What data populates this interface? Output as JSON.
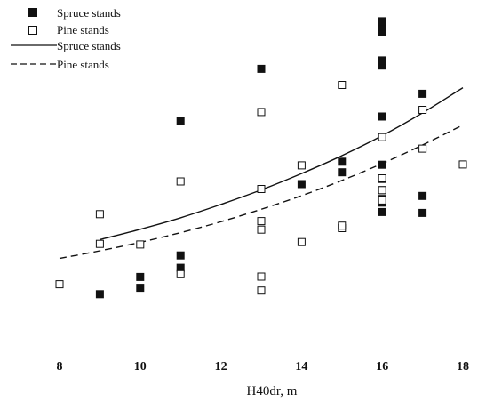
{
  "chart_data": {
    "type": "scatter",
    "title": "",
    "xlabel": "H40dr, m",
    "ylabel": "",
    "xlim": [
      8,
      18
    ],
    "ylim": [
      0,
      1
    ],
    "grid": false,
    "legend_placement": "top-left",
    "x_ticks": [
      "8",
      "10",
      "12",
      "14",
      "16",
      "18"
    ],
    "series": [
      {
        "name": "Spruce stands",
        "kind": "points",
        "marker": "filled-square",
        "color": "#111111",
        "points": [
          [
            9,
            0.112
          ],
          [
            10,
            0.133
          ],
          [
            10,
            0.169
          ],
          [
            11,
            0.199
          ],
          [
            11,
            0.24
          ],
          [
            11,
            0.682
          ],
          [
            13,
            0.855
          ],
          [
            14,
            0.475
          ],
          [
            15,
            0.514
          ],
          [
            15,
            0.549
          ],
          [
            16,
            0.383
          ],
          [
            16,
            0.414
          ],
          [
            16,
            0.426
          ],
          [
            16,
            0.455
          ],
          [
            16,
            0.492
          ],
          [
            16,
            0.539
          ],
          [
            16,
            0.698
          ],
          [
            16,
            0.866
          ],
          [
            16,
            0.883
          ],
          [
            16,
            0.976
          ],
          [
            16,
            0.993
          ],
          [
            16,
            1.012
          ],
          [
            17,
            0.38
          ],
          [
            17,
            0.436
          ],
          [
            17,
            0.773
          ]
        ]
      },
      {
        "name": "Pine stands",
        "kind": "points",
        "marker": "open-square",
        "color": "#111111",
        "points": [
          [
            8,
            0.145
          ],
          [
            9,
            0.278
          ],
          [
            9,
            0.376
          ],
          [
            10,
            0.276
          ],
          [
            11,
            0.178
          ],
          [
            11,
            0.484
          ],
          [
            13,
            0.124
          ],
          [
            13,
            0.17
          ],
          [
            13,
            0.325
          ],
          [
            13,
            0.353
          ],
          [
            13,
            0.459
          ],
          [
            13,
            0.713
          ],
          [
            14,
            0.284
          ],
          [
            14,
            0.537
          ],
          [
            15,
            0.33
          ],
          [
            15,
            0.338
          ],
          [
            15,
            0.802
          ],
          [
            16,
            0.421
          ],
          [
            16,
            0.455
          ],
          [
            16,
            0.494
          ],
          [
            16,
            0.63
          ],
          [
            17,
            0.592
          ],
          [
            17,
            0.72
          ],
          [
            18,
            0.54
          ]
        ]
      },
      {
        "name": "Spruce stands",
        "kind": "curve",
        "line_style": "solid",
        "color": "#111111",
        "x": [
          9,
          10,
          11,
          12,
          13,
          14,
          15,
          16,
          17,
          18
        ],
        "y": [
          0.292,
          0.326,
          0.364,
          0.408,
          0.456,
          0.51,
          0.569,
          0.635,
          0.71,
          0.793
        ]
      },
      {
        "name": "Pine stands",
        "kind": "curve",
        "line_style": "dashed",
        "color": "#111111",
        "x": [
          8,
          9,
          10,
          11,
          12,
          13,
          14,
          15,
          16,
          17,
          18
        ],
        "y": [
          0.23,
          0.255,
          0.283,
          0.315,
          0.351,
          0.392,
          0.437,
          0.487,
          0.543,
          0.604,
          0.67
        ]
      }
    ]
  }
}
